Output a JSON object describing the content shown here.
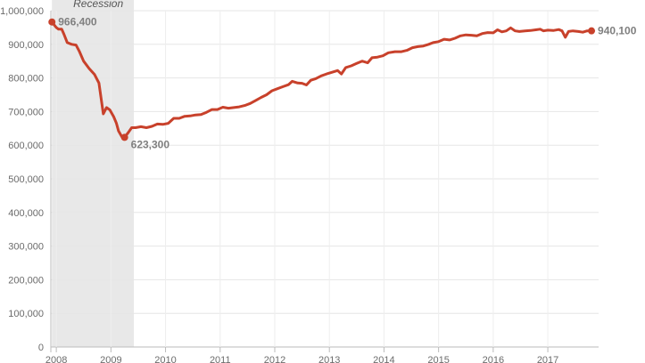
{
  "chart_data": {
    "type": "line",
    "title": "",
    "xlabel": "",
    "ylabel": "",
    "xlim": [
      2007.9,
      2017.93
    ],
    "ylim": [
      0,
      1000000
    ],
    "grid": true,
    "y_ticks": [
      0,
      100000,
      200000,
      300000,
      400000,
      500000,
      600000,
      700000,
      800000,
      900000,
      1000000
    ],
    "y_tick_labels": [
      "0",
      "100,000",
      "200,000",
      "300,000",
      "400,000",
      "500,000",
      "600,000",
      "700,000",
      "800,000",
      "900,000",
      "1,000,000"
    ],
    "x_ticks": [
      2008,
      2009,
      2010,
      2011,
      2012,
      2013,
      2014,
      2015,
      2016,
      2017
    ],
    "x_tick_labels": [
      "2008",
      "2009",
      "2010",
      "2011",
      "2012",
      "2013",
      "2014",
      "2015",
      "2016",
      "2017"
    ],
    "recession": {
      "label": "Recession",
      "start": 2007.92,
      "end": 2009.42,
      "color": "#e8e8e8"
    },
    "series": [
      {
        "color": "#c8412b",
        "points": [
          [
            2007.92,
            966400
          ],
          [
            2007.96,
            958000
          ],
          [
            2008.0,
            950000
          ],
          [
            2008.04,
            945000
          ],
          [
            2008.1,
            945000
          ],
          [
            2008.14,
            930000
          ],
          [
            2008.2,
            905000
          ],
          [
            2008.28,
            900000
          ],
          [
            2008.36,
            898000
          ],
          [
            2008.42,
            880000
          ],
          [
            2008.5,
            850000
          ],
          [
            2008.6,
            828000
          ],
          [
            2008.7,
            810000
          ],
          [
            2008.78,
            785000
          ],
          [
            2008.86,
            693000
          ],
          [
            2008.92,
            712000
          ],
          [
            2008.98,
            705000
          ],
          [
            2009.05,
            685000
          ],
          [
            2009.1,
            665000
          ],
          [
            2009.14,
            642000
          ],
          [
            2009.2,
            625000
          ],
          [
            2009.25,
            623300
          ],
          [
            2009.32,
            638000
          ],
          [
            2009.38,
            652000
          ],
          [
            2009.45,
            652000
          ],
          [
            2009.55,
            655000
          ],
          [
            2009.65,
            652000
          ],
          [
            2009.75,
            656000
          ],
          [
            2009.85,
            663000
          ],
          [
            2009.95,
            662000
          ],
          [
            2010.05,
            665000
          ],
          [
            2010.15,
            680000
          ],
          [
            2010.25,
            680000
          ],
          [
            2010.35,
            686000
          ],
          [
            2010.45,
            687000
          ],
          [
            2010.55,
            690000
          ],
          [
            2010.65,
            691000
          ],
          [
            2010.75,
            698000
          ],
          [
            2010.85,
            706000
          ],
          [
            2010.95,
            706000
          ],
          [
            2011.05,
            713000
          ],
          [
            2011.15,
            710000
          ],
          [
            2011.25,
            712000
          ],
          [
            2011.35,
            714000
          ],
          [
            2011.45,
            718000
          ],
          [
            2011.55,
            724000
          ],
          [
            2011.65,
            733000
          ],
          [
            2011.75,
            742000
          ],
          [
            2011.85,
            750000
          ],
          [
            2011.95,
            762000
          ],
          [
            2012.05,
            768000
          ],
          [
            2012.15,
            774000
          ],
          [
            2012.25,
            780000
          ],
          [
            2012.32,
            790000
          ],
          [
            2012.42,
            785000
          ],
          [
            2012.5,
            784000
          ],
          [
            2012.58,
            779000
          ],
          [
            2012.66,
            793000
          ],
          [
            2012.75,
            798000
          ],
          [
            2012.85,
            806000
          ],
          [
            2012.95,
            812000
          ],
          [
            2013.05,
            817000
          ],
          [
            2013.15,
            822000
          ],
          [
            2013.22,
            812000
          ],
          [
            2013.3,
            831000
          ],
          [
            2013.4,
            836000
          ],
          [
            2013.5,
            843000
          ],
          [
            2013.6,
            850000
          ],
          [
            2013.7,
            845000
          ],
          [
            2013.78,
            860000
          ],
          [
            2013.88,
            862000
          ],
          [
            2013.98,
            866000
          ],
          [
            2014.08,
            875000
          ],
          [
            2014.2,
            878000
          ],
          [
            2014.32,
            878000
          ],
          [
            2014.42,
            882000
          ],
          [
            2014.52,
            890000
          ],
          [
            2014.62,
            893000
          ],
          [
            2014.72,
            895000
          ],
          [
            2014.82,
            900000
          ],
          [
            2014.9,
            905000
          ],
          [
            2015.0,
            908000
          ],
          [
            2015.1,
            915000
          ],
          [
            2015.2,
            913000
          ],
          [
            2015.3,
            918000
          ],
          [
            2015.4,
            925000
          ],
          [
            2015.5,
            928000
          ],
          [
            2015.6,
            927000
          ],
          [
            2015.7,
            925000
          ],
          [
            2015.8,
            932000
          ],
          [
            2015.9,
            935000
          ],
          [
            2016.0,
            934000
          ],
          [
            2016.08,
            943000
          ],
          [
            2016.16,
            937000
          ],
          [
            2016.24,
            940000
          ],
          [
            2016.32,
            949000
          ],
          [
            2016.4,
            940000
          ],
          [
            2016.48,
            938000
          ],
          [
            2016.58,
            940000
          ],
          [
            2016.68,
            941000
          ],
          [
            2016.78,
            943000
          ],
          [
            2016.86,
            945000
          ],
          [
            2016.92,
            940000
          ],
          [
            2017.0,
            942000
          ],
          [
            2017.1,
            941000
          ],
          [
            2017.2,
            944000
          ],
          [
            2017.26,
            940000
          ],
          [
            2017.32,
            921000
          ],
          [
            2017.38,
            938000
          ],
          [
            2017.46,
            940000
          ],
          [
            2017.56,
            938000
          ],
          [
            2017.64,
            936000
          ],
          [
            2017.72,
            940000
          ],
          [
            2017.8,
            940100
          ]
        ]
      }
    ],
    "annotations": [
      {
        "label": "966,400",
        "x": 2007.92,
        "y": 966400
      },
      {
        "label": "623,300",
        "x": 2009.25,
        "y": 623300
      },
      {
        "label": "940,100",
        "x": 2017.8,
        "y": 940100
      }
    ]
  }
}
